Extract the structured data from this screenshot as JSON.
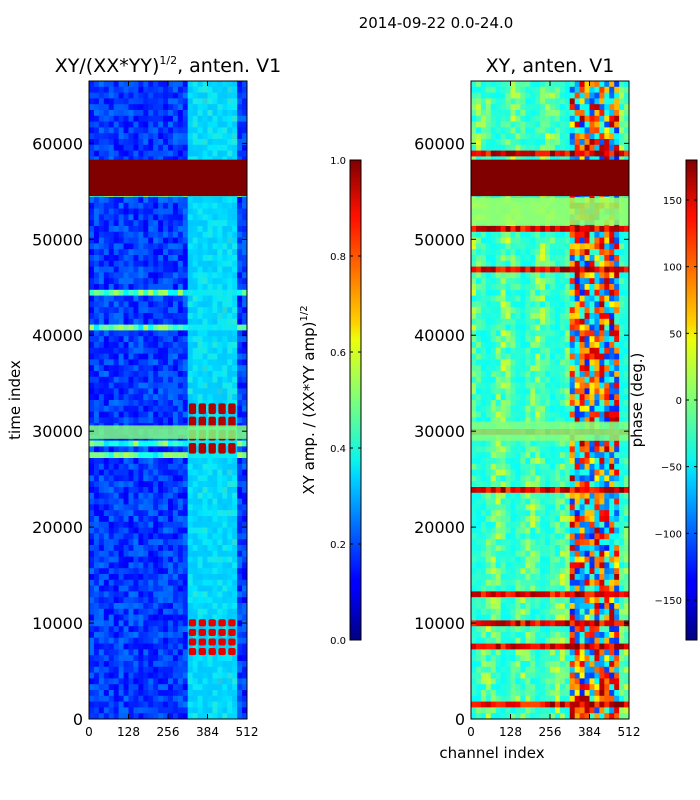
{
  "suptitle": "2014-09-22 0.0-24.0",
  "chart_data": [
    {
      "type": "heatmap",
      "title_main": "XY/(XX*YY)",
      "title_exp": "1/2",
      "title_tail": ", anten. V1",
      "xlabel": "",
      "ylabel": "time index",
      "xlim": [
        0,
        512
      ],
      "ylim": [
        0,
        66500
      ],
      "x_ticks": [
        0,
        128,
        256,
        384,
        512
      ],
      "y_ticks": [
        0,
        10000,
        20000,
        30000,
        40000,
        50000,
        60000
      ],
      "colormap": "jet",
      "colorbar": {
        "label_main": "XY amp. / (XX*YY amp)",
        "label_exp": "1/2",
        "range": [
          0,
          1
        ],
        "ticks": [
          "0.0",
          "0.2",
          "0.4",
          "0.6",
          "0.8",
          "1.0"
        ],
        "tick_values": [
          0,
          0.2,
          0.4,
          0.6,
          0.8,
          1.0
        ]
      },
      "regions": [
        {
          "label": "saturated band",
          "y_range": [
            54500,
            58300
          ],
          "x_range": [
            0,
            512
          ],
          "value": 1.0
        },
        {
          "label": "bright row band",
          "y_range": [
            29200,
            30600
          ],
          "x_range": [
            0,
            512
          ],
          "value": 0.5
        },
        {
          "label": "high amplitude blocks",
          "y_range": [
            27500,
            33000
          ],
          "x_range": [
            320,
            480
          ],
          "value": 0.95
        },
        {
          "label": "high amplitude blocks",
          "y_range": [
            6500,
            10500
          ],
          "x_range": [
            320,
            480
          ],
          "value": 0.9
        },
        {
          "label": "active channels",
          "y_range": [
            0,
            66500
          ],
          "x_range": [
            320,
            480
          ],
          "value": 0.35
        }
      ]
    },
    {
      "type": "heatmap",
      "title_main": "XY, anten. V1",
      "xlabel": "channel index",
      "ylabel": "",
      "xlim": [
        0,
        512
      ],
      "ylim": [
        0,
        66500
      ],
      "x_ticks": [
        0,
        128,
        256,
        384,
        512
      ],
      "y_ticks": [
        0,
        10000,
        20000,
        30000,
        40000,
        50000,
        60000
      ],
      "colormap": "jet",
      "colorbar": {
        "label_main": "phase (deg.)",
        "range": [
          -180,
          180
        ],
        "ticks": [
          "−150",
          "−100",
          "−50",
          "0",
          "50",
          "100",
          "150"
        ],
        "tick_values": [
          -150,
          -100,
          -50,
          0,
          50,
          100,
          150
        ]
      },
      "regions": [
        {
          "label": "saturated band",
          "y_range": [
            54500,
            58300
          ],
          "x_range": [
            0,
            512
          ],
          "value": 180
        },
        {
          "label": "flat band",
          "y_range": [
            51500,
            54300
          ],
          "x_range": [
            0,
            512
          ],
          "value": 10
        },
        {
          "label": "mixed phase rows",
          "y_range": [
            29000,
            31000
          ],
          "x_range": [
            0,
            512
          ],
          "value": 0
        },
        {
          "label": "mixed phase",
          "y_range": [
            0,
            66500
          ],
          "x_range": [
            0,
            512
          ],
          "value": -60
        }
      ]
    }
  ]
}
